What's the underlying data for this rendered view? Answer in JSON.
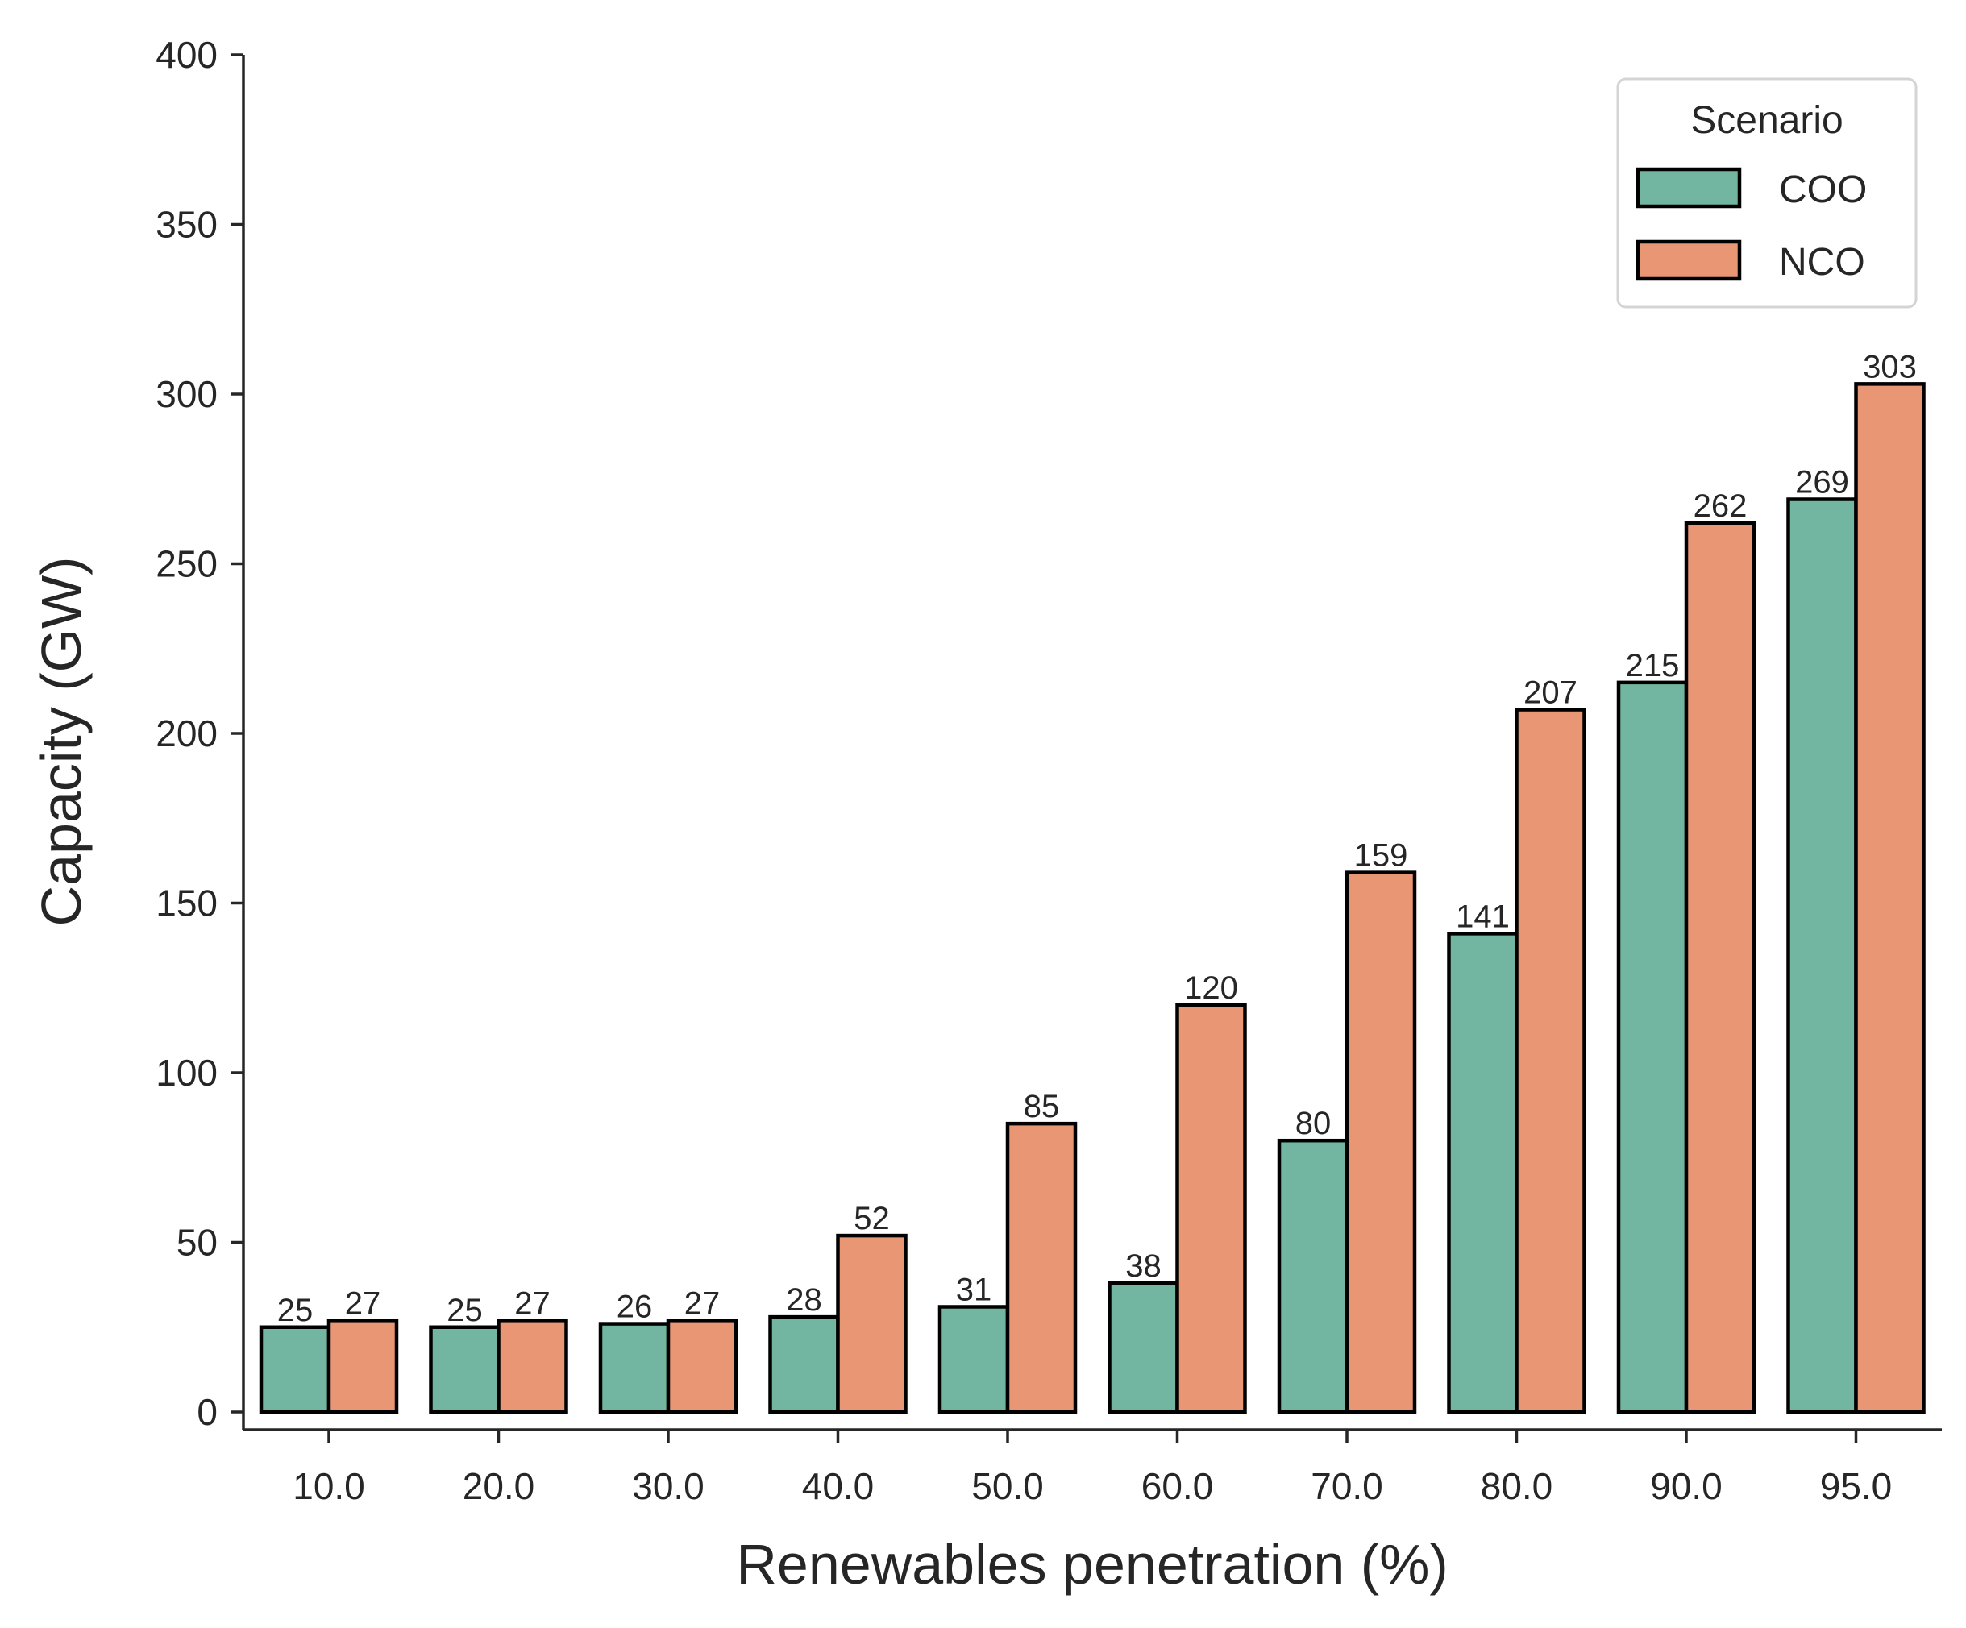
{
  "chart_data": {
    "type": "bar",
    "xlabel": "Renewables penetration (%)",
    "ylabel": "Capacity (GW)",
    "ylim": [
      0,
      400
    ],
    "yticks": [
      "0",
      "50",
      "100",
      "150",
      "200",
      "250",
      "300",
      "350",
      "400"
    ],
    "categories": [
      "10.0",
      "20.0",
      "30.0",
      "40.0",
      "50.0",
      "60.0",
      "70.0",
      "80.0",
      "90.0",
      "95.0"
    ],
    "series": [
      {
        "name": "COO",
        "color": "#72b6a1",
        "values": [
          25,
          25,
          26,
          28,
          31,
          38,
          80,
          141,
          215,
          269
        ],
        "labels": [
          "25",
          "25",
          "26",
          "28",
          "31",
          "38",
          "80",
          "141",
          "215",
          "269"
        ]
      },
      {
        "name": "NCO",
        "color": "#e99675",
        "values": [
          27,
          27,
          27,
          52,
          85,
          120,
          159,
          207,
          262,
          303
        ],
        "labels": [
          "27",
          "27",
          "27",
          "52",
          "85",
          "120",
          "159",
          "207",
          "262",
          "303"
        ]
      }
    ],
    "legend": {
      "title": "Scenario",
      "placement": "top-right"
    },
    "grid": false
  }
}
